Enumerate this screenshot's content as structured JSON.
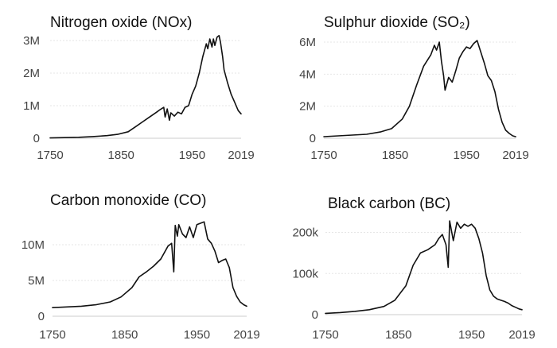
{
  "chart_data": [
    {
      "type": "line",
      "title": "Nitrogen oxide (NOx)",
      "xlim": [
        1750,
        2019
      ],
      "ylim": [
        0,
        3000000
      ],
      "x_ticks": [
        1750,
        1850,
        1950,
        2019
      ],
      "y_ticks": [
        0,
        1000000,
        2000000,
        3000000
      ],
      "y_tick_labels": [
        "0",
        "1M",
        "2M",
        "3M"
      ],
      "grid": true,
      "series": [
        {
          "x": [
            1750,
            1770,
            1790,
            1810,
            1830,
            1845,
            1860,
            1870,
            1880,
            1890,
            1900,
            1905,
            1910,
            1912,
            1915,
            1918,
            1920,
            1925,
            1930,
            1935,
            1940,
            1945,
            1950,
            1955,
            1960,
            1965,
            1970,
            1972,
            1975,
            1978,
            1980,
            1982,
            1985,
            1988,
            1990,
            1993,
            1995,
            2000,
            2005,
            2010,
            2015,
            2019
          ],
          "y": [
            10000,
            20000,
            30000,
            50000,
            80000,
            120000,
            200000,
            350000,
            500000,
            650000,
            800000,
            880000,
            950000,
            650000,
            900000,
            550000,
            780000,
            680000,
            800000,
            750000,
            950000,
            1000000,
            1350000,
            1600000,
            2000000,
            2500000,
            2900000,
            2750000,
            3050000,
            2800000,
            3050000,
            2850000,
            3100000,
            3150000,
            2950000,
            2500000,
            2100000,
            1700000,
            1350000,
            1100000,
            850000,
            750000
          ]
        }
      ]
    },
    {
      "type": "line",
      "title": "Sulphur dioxide (SO₂)",
      "xlim": [
        1750,
        2019
      ],
      "ylim": [
        0,
        6000000
      ],
      "x_ticks": [
        1750,
        1850,
        1950,
        2019
      ],
      "y_ticks": [
        0,
        2000000,
        4000000,
        6000000
      ],
      "y_tick_labels": [
        "0",
        "2M",
        "4M",
        "6M"
      ],
      "grid": true,
      "series": [
        {
          "x": [
            1750,
            1770,
            1790,
            1810,
            1830,
            1845,
            1860,
            1870,
            1880,
            1890,
            1900,
            1905,
            1908,
            1912,
            1915,
            1918,
            1920,
            1925,
            1930,
            1935,
            1940,
            1945,
            1950,
            1955,
            1960,
            1965,
            1970,
            1975,
            1980,
            1985,
            1990,
            1995,
            2000,
            2005,
            2010,
            2015,
            2019
          ],
          "y": [
            100000,
            150000,
            200000,
            250000,
            400000,
            600000,
            1200000,
            2000000,
            3300000,
            4500000,
            5200000,
            5800000,
            5500000,
            6000000,
            4800000,
            3900000,
            3000000,
            3800000,
            3500000,
            4200000,
            5000000,
            5400000,
            5700000,
            5600000,
            5900000,
            6100000,
            5400000,
            4700000,
            3900000,
            3600000,
            2900000,
            1800000,
            1000000,
            500000,
            300000,
            150000,
            100000
          ]
        }
      ]
    },
    {
      "type": "line",
      "title": "Carbon monoxide (CO)",
      "xlim": [
        1750,
        2019
      ],
      "ylim": [
        0,
        13000000
      ],
      "x_ticks": [
        1750,
        1850,
        1950,
        2019
      ],
      "y_ticks": [
        0,
        5000000,
        10000000
      ],
      "y_tick_labels": [
        "0",
        "5M",
        "10M"
      ],
      "grid": true,
      "series": [
        {
          "x": [
            1750,
            1770,
            1790,
            1810,
            1830,
            1845,
            1860,
            1870,
            1880,
            1890,
            1900,
            1910,
            1915,
            1918,
            1920,
            1923,
            1925,
            1930,
            1935,
            1940,
            1945,
            1950,
            1955,
            1960,
            1965,
            1970,
            1975,
            1980,
            1985,
            1990,
            1995,
            2000,
            2005,
            2010,
            2015,
            2019
          ],
          "y": [
            1200000,
            1300000,
            1400000,
            1600000,
            2000000,
            2700000,
            4000000,
            5500000,
            6200000,
            7000000,
            8000000,
            9800000,
            10200000,
            6200000,
            12700000,
            11200000,
            12800000,
            11500000,
            11000000,
            12500000,
            11000000,
            12800000,
            13000000,
            13200000,
            10800000,
            10200000,
            9100000,
            7500000,
            7800000,
            8000000,
            6800000,
            4000000,
            2800000,
            2000000,
            1600000,
            1400000
          ]
        }
      ]
    },
    {
      "type": "line",
      "title": "Black carbon (BC)",
      "xlim": [
        1750,
        2019
      ],
      "ylim": [
        0,
        230000
      ],
      "x_ticks": [
        1750,
        1850,
        1950,
        2019
      ],
      "y_ticks": [
        0,
        100000,
        200000
      ],
      "y_tick_labels": [
        "0",
        "100k",
        "200k"
      ],
      "grid": true,
      "series": [
        {
          "x": [
            1750,
            1770,
            1790,
            1810,
            1830,
            1845,
            1860,
            1870,
            1880,
            1890,
            1900,
            1905,
            1910,
            1915,
            1918,
            1920,
            1925,
            1930,
            1935,
            1940,
            1945,
            1950,
            1955,
            1960,
            1965,
            1970,
            1975,
            1980,
            1985,
            1990,
            1995,
            2000,
            2005,
            2010,
            2015,
            2019
          ],
          "y": [
            3000,
            5000,
            8000,
            12000,
            20000,
            35000,
            70000,
            120000,
            150000,
            158000,
            170000,
            185000,
            195000,
            170000,
            115000,
            228000,
            180000,
            225000,
            210000,
            220000,
            215000,
            220000,
            210000,
            185000,
            150000,
            95000,
            60000,
            45000,
            38000,
            35000,
            32000,
            28000,
            22000,
            18000,
            14000,
            12000
          ]
        }
      ]
    }
  ]
}
